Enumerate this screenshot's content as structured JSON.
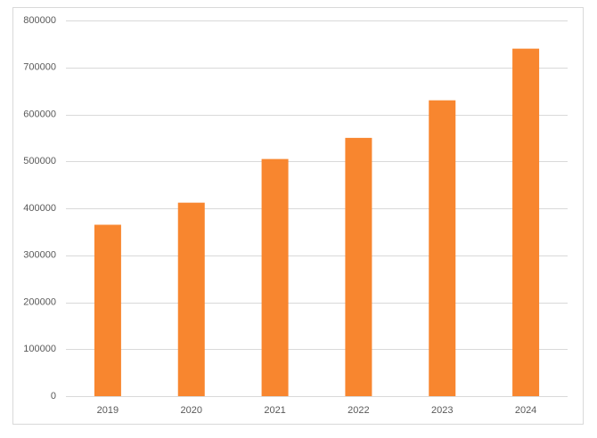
{
  "chart_data": {
    "type": "bar",
    "categories": [
      "2019",
      "2020",
      "2021",
      "2022",
      "2023",
      "2024"
    ],
    "values": [
      365000,
      412000,
      505000,
      550000,
      630000,
      740000
    ],
    "color": "#f8862f",
    "ylim": [
      0,
      800000
    ],
    "yticks": [
      0,
      100000,
      200000,
      300000,
      400000,
      500000,
      600000,
      700000,
      800000
    ],
    "grid": true
  }
}
